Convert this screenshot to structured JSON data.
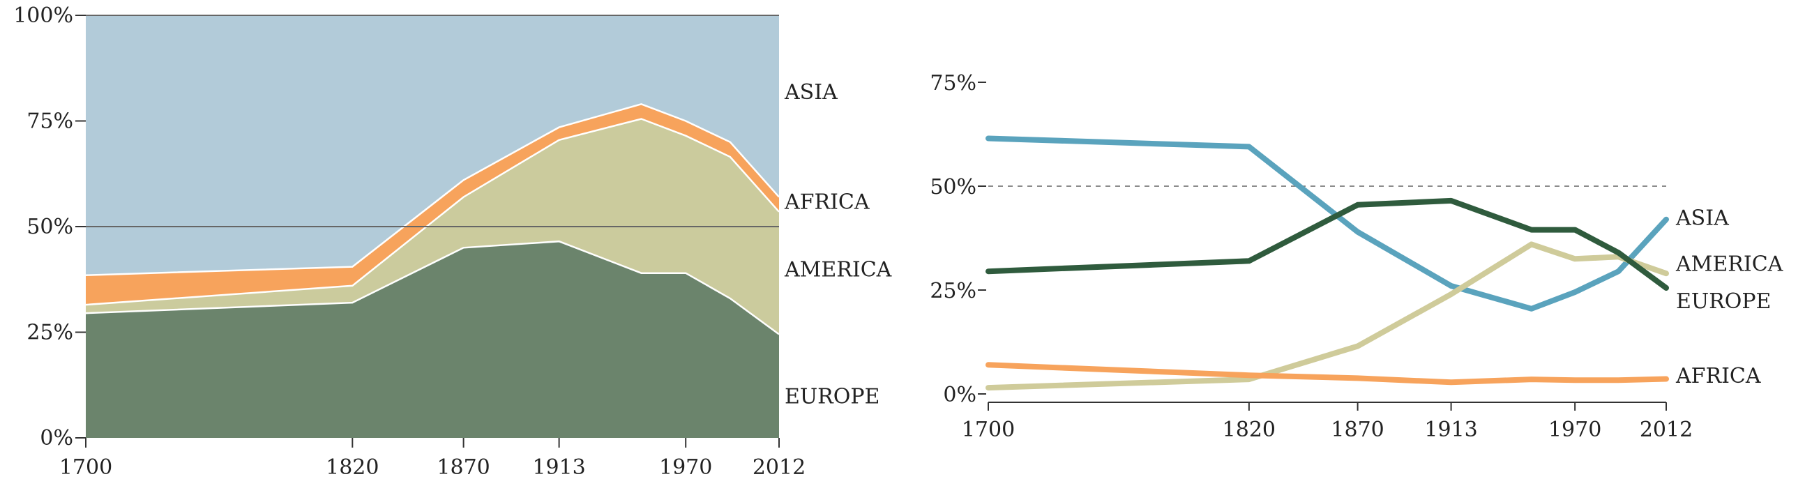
{
  "chart_data": [
    {
      "type": "area",
      "stacked": true,
      "normalized_percent": true,
      "x": [
        1700,
        1820,
        1870,
        1913,
        1950,
        1970,
        1990,
        2012
      ],
      "x_tick_labels": [
        "1700",
        "1820",
        "1870",
        "1913",
        "1970",
        "2012"
      ],
      "y_tick_labels": [
        "0%",
        "25%",
        "50%",
        "75%",
        "100%"
      ],
      "ylim": [
        0,
        100
      ],
      "reference_lines": [
        50,
        100
      ],
      "series": [
        {
          "name": "EUROPE",
          "color": "#6b846c",
          "values": [
            29.5,
            32,
            45,
            46.5,
            39,
            39,
            33,
            24.5
          ]
        },
        {
          "name": "AMERICA",
          "color": "#cbcb9d",
          "values": [
            2,
            4,
            12,
            24,
            36.5,
            32.5,
            33.5,
            29
          ]
        },
        {
          "name": "AFRICA",
          "color": "#f7a35c",
          "values": [
            7,
            4.5,
            4,
            3,
            3.5,
            3.5,
            3.5,
            3.5
          ]
        },
        {
          "name": "ASIA",
          "color": "#b2cbd9",
          "values": [
            61.5,
            59.5,
            39,
            26.5,
            21,
            25,
            30,
            43
          ]
        }
      ]
    },
    {
      "type": "line",
      "x": [
        1700,
        1820,
        1870,
        1913,
        1950,
        1970,
        1990,
        2012
      ],
      "x_tick_labels": [
        "1700",
        "1820",
        "1870",
        "1913",
        "1970",
        "2012"
      ],
      "y_tick_labels": [
        "0%",
        "25%",
        "50%",
        "75%"
      ],
      "ylim": [
        0,
        80
      ],
      "reference_lines": [
        50
      ],
      "series": [
        {
          "name": "ASIA",
          "color": "#5aa3bd",
          "values": [
            61.5,
            59.5,
            39,
            26,
            20.5,
            24.5,
            29.5,
            42
          ]
        },
        {
          "name": "AMERICA",
          "color": "#cfcb9a",
          "values": [
            1.5,
            3.5,
            11.5,
            24,
            36,
            32.5,
            33,
            29
          ]
        },
        {
          "name": "EUROPE",
          "color": "#2f5b3d",
          "values": [
            29.5,
            32,
            45.5,
            46.5,
            39.5,
            39.5,
            34,
            25.5
          ]
        },
        {
          "name": "AFRICA",
          "color": "#f7a35c",
          "values": [
            7,
            4.5,
            3.8,
            2.8,
            3.5,
            3.3,
            3.3,
            3.6
          ]
        }
      ]
    }
  ]
}
